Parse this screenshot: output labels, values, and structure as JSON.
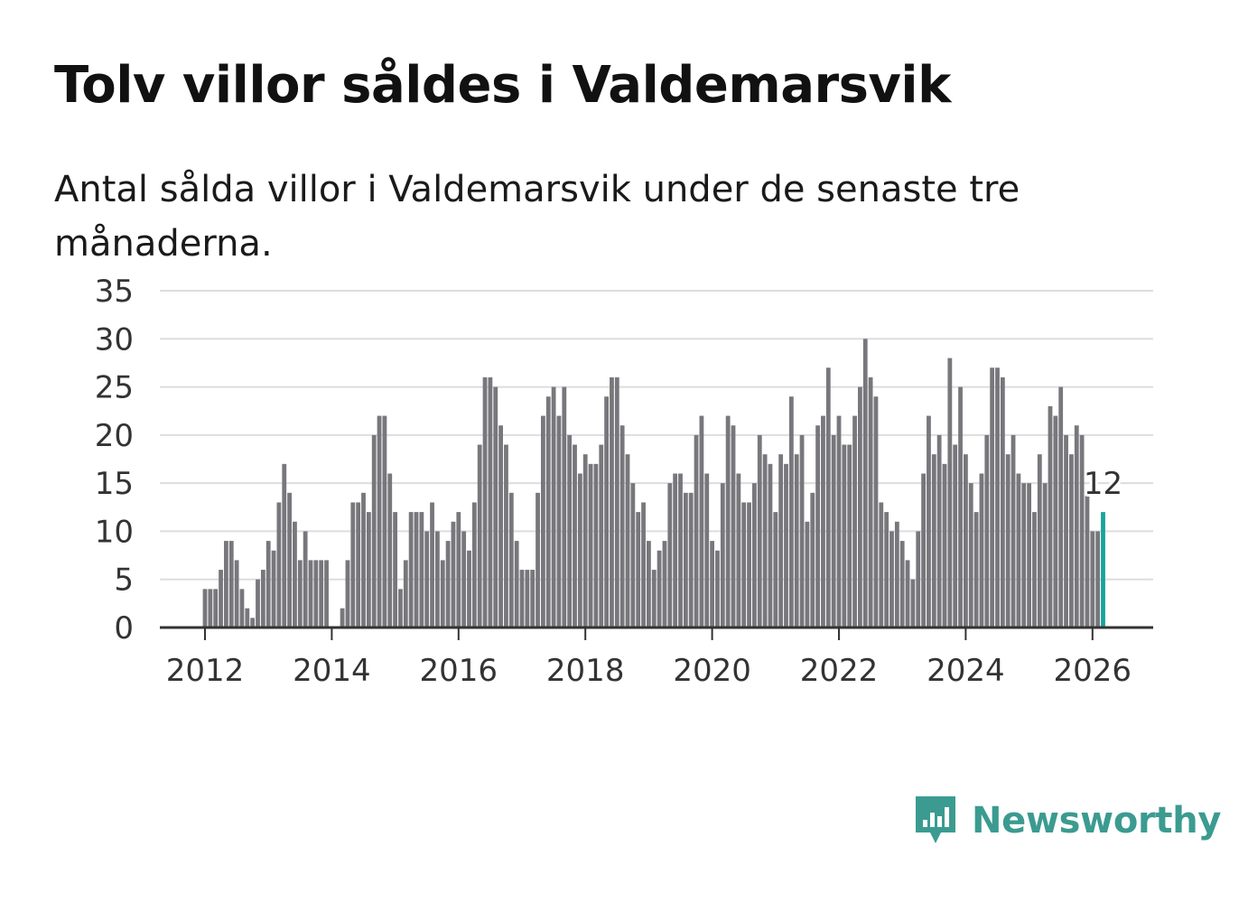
{
  "header": {
    "title": "Tolv villor såldes i Valdemarsvik",
    "subtitle": "Antal sålda villor i Valdemarsvik under de senaste tre månaderna."
  },
  "brand": {
    "name": "Newsworthy",
    "color": "#3b9b90"
  },
  "colors": {
    "bar": "#77777c",
    "highlight": "#17a39b",
    "grid": "#dddddd",
    "axis": "#333333"
  },
  "chart_data": {
    "type": "bar",
    "title": "Tolv villor såldes i Valdemarsvik",
    "xlabel": "",
    "ylabel": "",
    "ylim": [
      0,
      35
    ],
    "yticks": [
      "0",
      "5",
      "10",
      "15",
      "20",
      "25",
      "30",
      "35"
    ],
    "xticks": [
      "2012",
      "2014",
      "2016",
      "2018",
      "2020",
      "2022",
      "2024",
      "2026"
    ],
    "grid": true,
    "start": "2012-01",
    "highlight_label": "12",
    "series": [
      {
        "name": "Antal sålda villor",
        "values": [
          4,
          4,
          4,
          6,
          9,
          9,
          7,
          4,
          2,
          1,
          5,
          6,
          9,
          8,
          13,
          17,
          14,
          11,
          7,
          10,
          7,
          7,
          7,
          7,
          0,
          0,
          2,
          7,
          13,
          13,
          14,
          12,
          20,
          22,
          22,
          16,
          12,
          4,
          7,
          12,
          12,
          12,
          10,
          13,
          10,
          7,
          9,
          11,
          12,
          10,
          8,
          13,
          19,
          26,
          26,
          25,
          21,
          19,
          14,
          9,
          6,
          6,
          6,
          14,
          22,
          24,
          25,
          22,
          25,
          20,
          19,
          16,
          18,
          17,
          17,
          19,
          24,
          26,
          26,
          21,
          18,
          15,
          12,
          13,
          9,
          6,
          8,
          9,
          15,
          16,
          16,
          14,
          14,
          20,
          22,
          16,
          9,
          8,
          15,
          22,
          21,
          16,
          13,
          13,
          15,
          20,
          18,
          17,
          12,
          18,
          17,
          24,
          18,
          20,
          11,
          14,
          21,
          22,
          27,
          20,
          22,
          19,
          19,
          22,
          25,
          30,
          26,
          24,
          13,
          12,
          10,
          11,
          9,
          7,
          5,
          10,
          16,
          22,
          18,
          20,
          17,
          28,
          19,
          25,
          18,
          15,
          12,
          16,
          20,
          27,
          27,
          26,
          18,
          20,
          16,
          15,
          15,
          12,
          18,
          15,
          23,
          22,
          25,
          20,
          18,
          21,
          20,
          14,
          10,
          10,
          12
        ]
      }
    ]
  }
}
